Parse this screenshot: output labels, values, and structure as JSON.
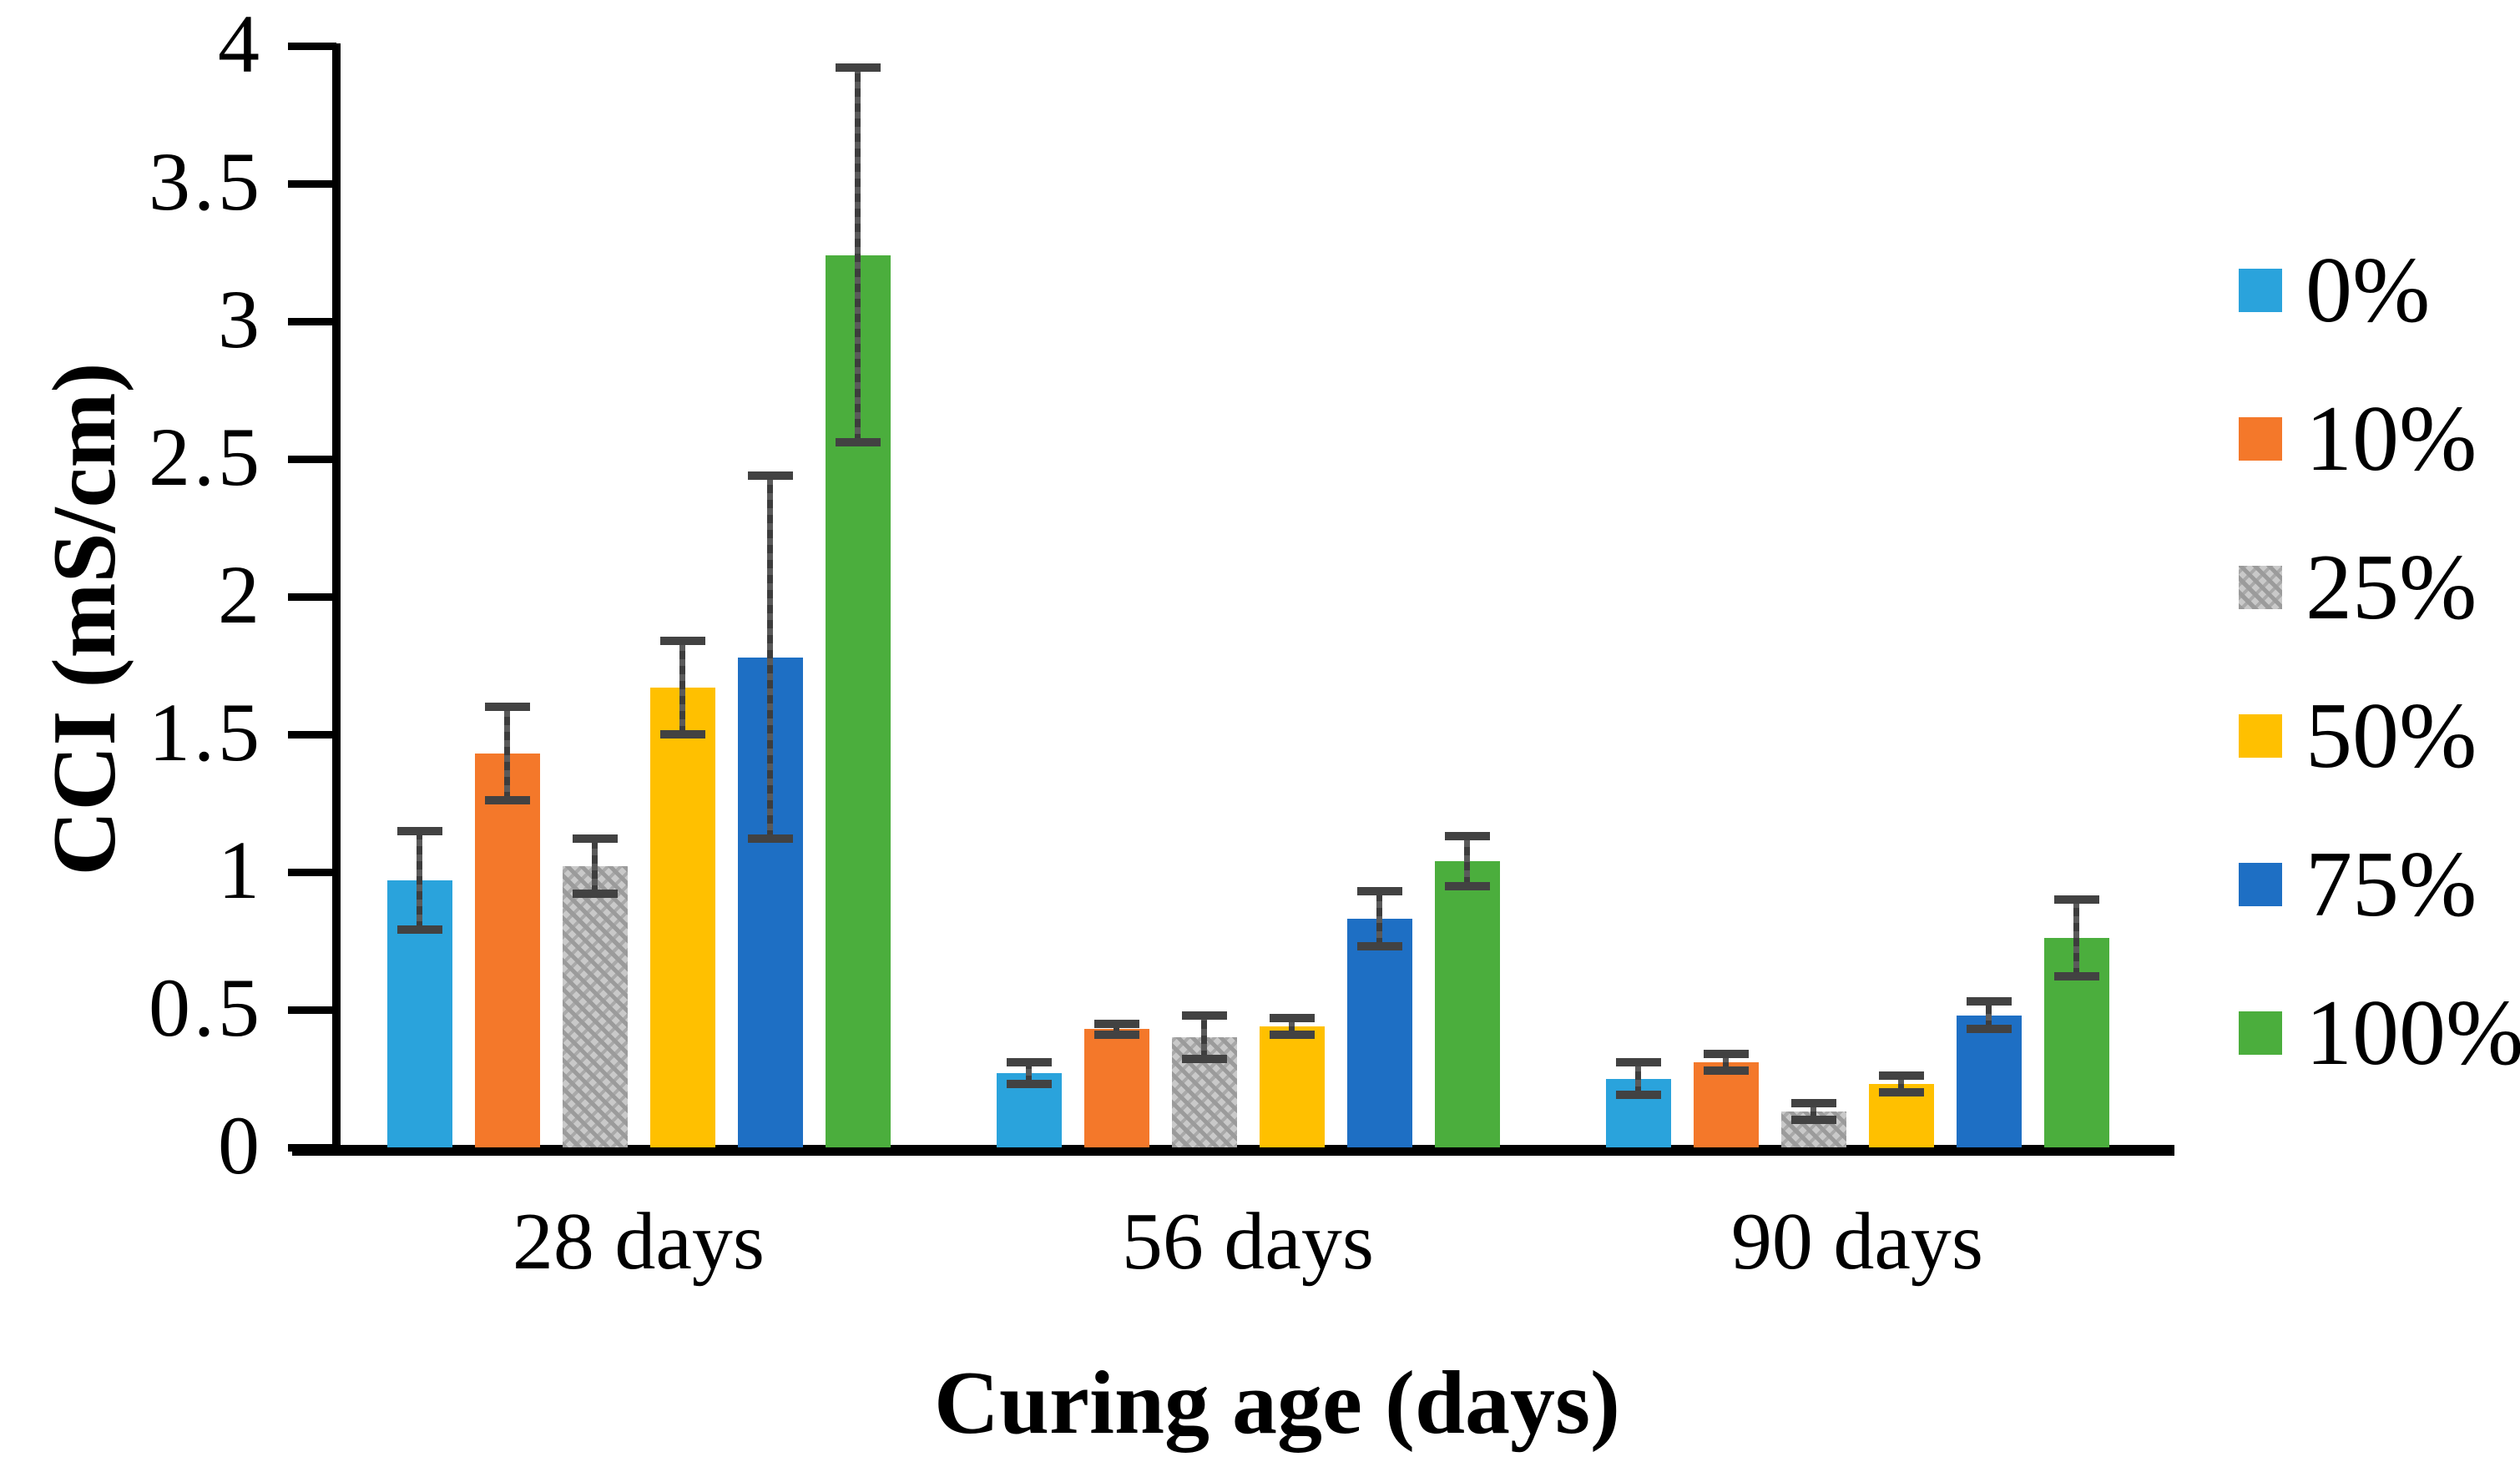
{
  "chart_data": {
    "type": "bar",
    "title": "",
    "xlabel": "Curing age (days)",
    "ylabel": "CCI (mS/cm)",
    "ylim": [
      0,
      4
    ],
    "ytick_step": 0.5,
    "yticks": [
      "0",
      "0.5",
      "1",
      "1.5",
      "2",
      "2.5",
      "3",
      "3.5",
      "4"
    ],
    "grid": "off",
    "legend_position": "right",
    "error_bars": true,
    "categories": [
      "28 days",
      "56 days",
      "90 days"
    ],
    "series": [
      {
        "name": "0%",
        "color": "#2aa3dc",
        "pattern": "solid",
        "values": [
          0.97,
          0.27,
          0.25
        ],
        "errors": [
          0.18,
          0.04,
          0.06
        ]
      },
      {
        "name": "10%",
        "color": "#f4782a",
        "pattern": "solid",
        "values": [
          1.43,
          0.43,
          0.31
        ],
        "errors": [
          0.17,
          0.02,
          0.03
        ]
      },
      {
        "name": "25%",
        "color": "#ababab",
        "pattern": "gray-weave",
        "values": [
          1.02,
          0.4,
          0.13
        ],
        "errors": [
          0.1,
          0.08,
          0.03
        ]
      },
      {
        "name": "50%",
        "color": "#ffc000",
        "pattern": "solid",
        "values": [
          1.67,
          0.44,
          0.23
        ],
        "errors": [
          0.17,
          0.03,
          0.03
        ]
      },
      {
        "name": "75%",
        "color": "#1e6fc4",
        "pattern": "solid",
        "values": [
          1.78,
          0.83,
          0.48
        ],
        "errors": [
          0.66,
          0.1,
          0.05
        ]
      },
      {
        "name": "100%",
        "color": "#4bae3d",
        "pattern": "solid",
        "values": [
          3.24,
          1.04,
          0.76
        ],
        "errors": [
          0.68,
          0.09,
          0.14
        ]
      }
    ],
    "axis_color": "#000000",
    "error_bar_color": "#4a4a4a"
  }
}
